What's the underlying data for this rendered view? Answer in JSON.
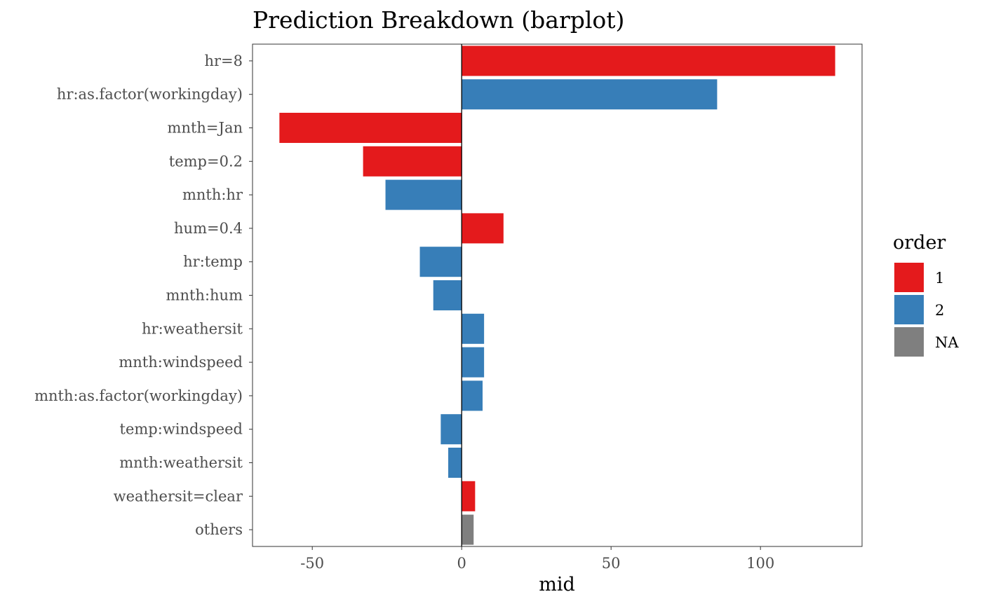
{
  "chart_data": {
    "type": "bar",
    "orientation": "horizontal",
    "title": "Prediction Breakdown (barplot)",
    "xlabel": "mid",
    "ylabel": "",
    "xlim": [
      -70,
      134
    ],
    "xticks": [
      -50,
      0,
      50,
      100
    ],
    "xtick_labels": [
      "-50",
      "0",
      "50",
      "100"
    ],
    "grid": false,
    "categories": [
      "hr=8",
      "hr:as.factor(workingday)",
      "mnth=Jan",
      "temp=0.2",
      "mnth:hr",
      "hum=0.4",
      "hr:temp",
      "mnth:hum",
      "hr:weathersit",
      "mnth:windspeed",
      "mnth:as.factor(workingday)",
      "temp:windspeed",
      "mnth:weathersit",
      "weathersit=clear",
      "others"
    ],
    "values": [
      125,
      85.5,
      -61,
      -33,
      -25.5,
      14,
      -14,
      -9.5,
      7.5,
      7.5,
      7,
      -7,
      -4.5,
      4.5,
      4
    ],
    "groups": [
      "1",
      "2",
      "1",
      "1",
      "2",
      "1",
      "2",
      "2",
      "2",
      "2",
      "2",
      "2",
      "2",
      "1",
      "NA"
    ],
    "legend": {
      "title": "order",
      "position": "right",
      "entries": [
        {
          "label": "1",
          "color": "#E41A1C"
        },
        {
          "label": "2",
          "color": "#377EB8"
        },
        {
          "label": "NA",
          "color": "#7F7F7F"
        }
      ]
    }
  }
}
